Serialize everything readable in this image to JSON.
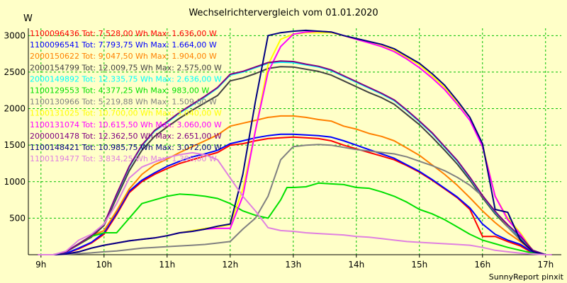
{
  "chart_data": {
    "type": "line",
    "title": "Wechselrichtervergleich vom 01.01.2020",
    "ylabel": "W",
    "xlabel": "",
    "footer": "SunnyReport pinxit",
    "xlim": [
      8.8,
      17.25
    ],
    "ylim": [
      0,
      3100
    ],
    "yticks": [
      500,
      1000,
      1500,
      2000,
      2500,
      3000
    ],
    "xticks": [
      {
        "value": 9,
        "label": "9h"
      },
      {
        "value": 10,
        "label": "10h"
      },
      {
        "value": 11,
        "label": "11h"
      },
      {
        "value": 12,
        "label": "12h"
      },
      {
        "value": 13,
        "label": "13h"
      },
      {
        "value": 14,
        "label": "14h"
      },
      {
        "value": 15,
        "label": "15h"
      },
      {
        "value": 16,
        "label": "16h"
      },
      {
        "value": 17,
        "label": "17h"
      }
    ],
    "grid": true,
    "legend_position": "top-left",
    "series": [
      {
        "name": "1100096436",
        "label": "1100096436 Tot: 7.528,00 Wh Max: 1.636,00 W",
        "color": "#ff0000",
        "x": [
          8.95,
          9.2,
          9.4,
          9.6,
          9.8,
          10.0,
          10.2,
          10.4,
          10.6,
          10.8,
          11.0,
          11.2,
          11.4,
          11.6,
          11.8,
          12.0,
          12.2,
          12.4,
          12.6,
          12.8,
          13.0,
          13.2,
          13.4,
          13.6,
          13.8,
          14.0,
          14.2,
          14.4,
          14.6,
          14.8,
          15.0,
          15.2,
          15.4,
          15.6,
          15.8,
          16.0,
          16.2,
          16.4,
          16.6,
          16.8,
          17.0,
          17.1
        ],
        "y": [
          0,
          0,
          20,
          80,
          160,
          280,
          550,
          850,
          1000,
          1100,
          1180,
          1250,
          1300,
          1350,
          1400,
          1500,
          1520,
          1560,
          1590,
          1600,
          1610,
          1600,
          1590,
          1560,
          1500,
          1450,
          1400,
          1350,
          1300,
          1220,
          1130,
          1020,
          900,
          780,
          620,
          250,
          250,
          180,
          120,
          20,
          0,
          0
        ]
      },
      {
        "name": "1100096541",
        "label": "1100096541 Tot: 7.793,75 Wh Max: 1.664,00 W",
        "color": "#0000ff",
        "x": [
          8.95,
          9.2,
          9.4,
          9.6,
          9.8,
          10.0,
          10.2,
          10.4,
          10.6,
          10.8,
          11.0,
          11.2,
          11.4,
          11.6,
          11.8,
          12.0,
          12.2,
          12.4,
          12.6,
          12.8,
          13.0,
          13.2,
          13.4,
          13.6,
          13.8,
          14.0,
          14.2,
          14.4,
          14.6,
          14.8,
          15.0,
          15.2,
          15.4,
          15.6,
          15.8,
          16.0,
          16.2,
          16.4,
          16.6,
          16.8,
          17.0,
          17.1
        ],
        "y": [
          0,
          0,
          20,
          90,
          170,
          300,
          570,
          870,
          1020,
          1120,
          1210,
          1280,
          1340,
          1380,
          1430,
          1520,
          1560,
          1600,
          1630,
          1650,
          1650,
          1640,
          1630,
          1610,
          1560,
          1500,
          1440,
          1380,
          1320,
          1230,
          1140,
          1030,
          910,
          790,
          640,
          420,
          280,
          200,
          140,
          30,
          0,
          0
        ]
      },
      {
        "name": "2000150622",
        "label": "2000150622 Tot: 9.047,50 Wh Max: 1.904,00 W",
        "color": "#ff8000",
        "x": [
          8.95,
          9.2,
          9.4,
          9.6,
          9.8,
          10.0,
          10.2,
          10.4,
          10.6,
          10.8,
          11.0,
          11.2,
          11.4,
          11.6,
          11.8,
          12.0,
          12.2,
          12.4,
          12.6,
          12.8,
          13.0,
          13.2,
          13.4,
          13.6,
          13.8,
          14.0,
          14.2,
          14.4,
          14.6,
          14.8,
          15.0,
          15.2,
          15.4,
          15.6,
          15.8,
          16.0,
          16.2,
          16.4,
          16.6,
          16.8,
          17.0,
          17.1
        ],
        "y": [
          0,
          0,
          40,
          150,
          260,
          330,
          600,
          900,
          1100,
          1230,
          1310,
          1400,
          1480,
          1560,
          1640,
          1760,
          1800,
          1840,
          1880,
          1900,
          1900,
          1880,
          1850,
          1830,
          1760,
          1720,
          1660,
          1620,
          1560,
          1460,
          1360,
          1230,
          1100,
          950,
          780,
          600,
          440,
          300,
          180,
          40,
          0,
          0
        ]
      },
      {
        "name": "2000154799",
        "label": "2000154799 Tot: 12.009,75 Wh Max: 2.575,00 W",
        "color": "#404040",
        "x": [
          8.95,
          9.2,
          9.4,
          9.6,
          9.8,
          10.0,
          10.2,
          10.4,
          10.6,
          10.8,
          11.0,
          11.2,
          11.4,
          11.6,
          11.8,
          12.0,
          12.2,
          12.4,
          12.6,
          12.8,
          13.0,
          13.2,
          13.4,
          13.6,
          13.8,
          14.0,
          14.2,
          14.4,
          14.6,
          14.8,
          15.0,
          15.2,
          15.4,
          15.6,
          15.8,
          16.0,
          16.2,
          16.4,
          16.6,
          16.8,
          17.0,
          17.1
        ],
        "y": [
          0,
          0,
          40,
          140,
          240,
          400,
          780,
          1150,
          1430,
          1620,
          1750,
          1870,
          1980,
          2080,
          2180,
          2380,
          2420,
          2480,
          2550,
          2575,
          2570,
          2540,
          2510,
          2460,
          2380,
          2300,
          2220,
          2150,
          2060,
          1920,
          1780,
          1610,
          1430,
          1240,
          1020,
          780,
          560,
          380,
          220,
          50,
          0,
          0
        ]
      },
      {
        "name": "2000149892",
        "label": "2000149892 Tot: 12.335,75 Wh Max: 2.636,00 W",
        "color": "#00ffff",
        "x": [
          8.95,
          9.2,
          9.4,
          9.6,
          9.8,
          10.0,
          10.2,
          10.4,
          10.6,
          10.8,
          11.0,
          11.2,
          11.4,
          11.6,
          11.8,
          12.0,
          12.2,
          12.4,
          12.6,
          12.8,
          13.0,
          13.2,
          13.4,
          13.6,
          13.8,
          14.0,
          14.2,
          14.4,
          14.6,
          14.8,
          15.0,
          15.2,
          15.4,
          15.6,
          15.8,
          16.0,
          16.2,
          16.4,
          16.6,
          16.8,
          17.0,
          17.1
        ],
        "y": [
          0,
          0,
          40,
          150,
          260,
          420,
          820,
          1200,
          1490,
          1690,
          1810,
          1940,
          2050,
          2160,
          2280,
          2460,
          2500,
          2560,
          2620,
          2636,
          2630,
          2600,
          2570,
          2520,
          2440,
          2360,
          2280,
          2200,
          2110,
          1970,
          1820,
          1660,
          1470,
          1280,
          1050,
          800,
          580,
          400,
          240,
          60,
          0,
          0
        ]
      },
      {
        "name": "1100129553",
        "label": "1100129553 Tot: 4.377,25 Wh Max: 983,00 W",
        "color": "#00e000",
        "x": [
          8.95,
          9.2,
          9.4,
          9.6,
          9.8,
          10.0,
          10.2,
          10.4,
          10.6,
          10.8,
          11.0,
          11.2,
          11.4,
          11.6,
          11.8,
          12.0,
          12.2,
          12.4,
          12.6,
          12.8,
          12.9,
          13.0,
          13.2,
          13.4,
          13.6,
          13.8,
          14.0,
          14.2,
          14.4,
          14.6,
          14.8,
          15.0,
          15.2,
          15.4,
          15.6,
          15.8,
          16.0,
          16.2,
          16.4,
          16.6,
          16.8,
          17.0,
          17.1
        ],
        "y": [
          0,
          0,
          40,
          150,
          250,
          300,
          300,
          500,
          700,
          750,
          800,
          830,
          820,
          800,
          770,
          700,
          600,
          540,
          500,
          750,
          920,
          920,
          930,
          980,
          970,
          960,
          920,
          910,
          860,
          800,
          720,
          620,
          560,
          480,
          380,
          280,
          200,
          150,
          100,
          60,
          20,
          0,
          0
        ]
      },
      {
        "name": "1100130966",
        "label": "1100130966 Tot: 5.219,88 Wh Max: 1.509,00 W",
        "color": "#808080",
        "x": [
          8.95,
          9.2,
          9.4,
          9.6,
          9.8,
          10.0,
          10.2,
          10.4,
          10.6,
          10.8,
          11.0,
          11.2,
          11.4,
          11.6,
          11.8,
          12.0,
          12.2,
          12.4,
          12.6,
          12.8,
          13.0,
          13.2,
          13.4,
          13.6,
          13.8,
          14.0,
          14.2,
          14.4,
          14.6,
          14.8,
          15.0,
          15.2,
          15.4,
          15.6,
          15.8,
          16.0,
          16.2,
          16.4,
          16.6,
          16.8,
          17.0,
          17.1
        ],
        "y": [
          0,
          0,
          5,
          15,
          25,
          40,
          50,
          70,
          90,
          100,
          110,
          120,
          130,
          140,
          160,
          180,
          350,
          500,
          800,
          1300,
          1480,
          1500,
          1509,
          1500,
          1470,
          1440,
          1420,
          1400,
          1380,
          1340,
          1280,
          1220,
          1150,
          1060,
          950,
          800,
          600,
          380,
          200,
          50,
          0,
          0
        ]
      },
      {
        "name": "1100131025",
        "label": "1100131025 Tot: 10.700,00 Wh Max: 3.040,00 W",
        "color": "#ffff00",
        "x": [
          8.95,
          9.2,
          9.4,
          9.6,
          9.8,
          10.0,
          10.2,
          10.4,
          10.6,
          10.8,
          11.0,
          11.2,
          11.4,
          11.6,
          11.8,
          12.0,
          12.2,
          12.4,
          12.6,
          12.8,
          13.0,
          13.2,
          13.4,
          13.6,
          13.8,
          14.0,
          14.2,
          14.4,
          14.6,
          14.8,
          15.0,
          15.2,
          15.4,
          15.6,
          15.8,
          16.0,
          16.2,
          16.4,
          16.6,
          16.8,
          17.0,
          17.1
        ],
        "y": [
          0,
          0,
          10,
          40,
          90,
          130,
          160,
          190,
          210,
          230,
          260,
          300,
          330,
          360,
          380,
          410,
          900,
          1700,
          2600,
          2950,
          3020,
          3040,
          3040,
          3040,
          3000,
          2950,
          2900,
          2860,
          2800,
          2700,
          2600,
          2450,
          2290,
          2090,
          1880,
          1500,
          800,
          500,
          300,
          50,
          0,
          0
        ]
      },
      {
        "name": "1100131074",
        "label": "1100131074 Tot: 10.615,50 Wh Max: 3.060,00 W",
        "color": "#ff00ff",
        "x": [
          8.95,
          9.2,
          9.4,
          9.6,
          9.8,
          10.0,
          10.2,
          10.4,
          10.6,
          10.8,
          11.0,
          11.2,
          11.4,
          11.6,
          11.8,
          12.0,
          12.2,
          12.4,
          12.6,
          12.8,
          13.0,
          13.2,
          13.4,
          13.6,
          13.8,
          14.0,
          14.2,
          14.4,
          14.6,
          14.8,
          15.0,
          15.2,
          15.4,
          15.6,
          15.8,
          16.0,
          16.2,
          16.4,
          16.6,
          16.8,
          17.0,
          17.1
        ],
        "y": [
          0,
          0,
          10,
          40,
          90,
          130,
          160,
          190,
          210,
          230,
          260,
          300,
          320,
          350,
          360,
          360,
          800,
          1700,
          2500,
          2850,
          3020,
          3050,
          3060,
          3050,
          3000,
          2950,
          2900,
          2850,
          2780,
          2680,
          2560,
          2420,
          2260,
          2060,
          1840,
          1480,
          800,
          480,
          280,
          40,
          0,
          0
        ]
      },
      {
        "name": "2000001478",
        "label": "2000001478 Tot: 12.362,50 Wh Max: 2.651,00 W",
        "color": "#800080",
        "x": [
          8.95,
          9.2,
          9.4,
          9.6,
          9.8,
          10.0,
          10.2,
          10.4,
          10.6,
          10.8,
          11.0,
          11.2,
          11.4,
          11.6,
          11.8,
          12.0,
          12.2,
          12.4,
          12.6,
          12.8,
          13.0,
          13.2,
          13.4,
          13.6,
          13.8,
          14.0,
          14.2,
          14.4,
          14.6,
          14.8,
          15.0,
          15.2,
          15.4,
          15.6,
          15.8,
          16.0,
          16.2,
          16.4,
          16.6,
          16.8,
          17.0,
          17.1
        ],
        "y": [
          0,
          0,
          40,
          150,
          260,
          420,
          830,
          1210,
          1500,
          1700,
          1820,
          1950,
          2060,
          2170,
          2290,
          2470,
          2510,
          2570,
          2630,
          2651,
          2645,
          2610,
          2580,
          2530,
          2450,
          2370,
          2290,
          2210,
          2120,
          1980,
          1830,
          1670,
          1480,
          1290,
          1060,
          810,
          590,
          410,
          250,
          60,
          0,
          0
        ]
      },
      {
        "name": "1100148421",
        "label": "1100148421 Tot: 10.985,75 Wh Max: 3.072,00 W",
        "color": "#000080",
        "x": [
          8.95,
          9.2,
          9.4,
          9.6,
          9.8,
          10.0,
          10.2,
          10.4,
          10.6,
          10.8,
          11.0,
          11.2,
          11.4,
          11.6,
          11.8,
          12.0,
          12.2,
          12.4,
          12.6,
          12.8,
          13.0,
          13.2,
          13.4,
          13.6,
          13.8,
          14.0,
          14.2,
          14.4,
          14.6,
          14.8,
          15.0,
          15.2,
          15.4,
          15.6,
          15.8,
          16.0,
          16.2,
          16.4,
          16.6,
          16.8,
          17.0,
          17.1
        ],
        "y": [
          0,
          0,
          10,
          40,
          90,
          130,
          160,
          190,
          210,
          230,
          260,
          300,
          320,
          350,
          390,
          420,
          1100,
          2100,
          3000,
          3040,
          3060,
          3072,
          3060,
          3050,
          3000,
          2960,
          2920,
          2880,
          2820,
          2720,
          2620,
          2480,
          2320,
          2110,
          1880,
          1520,
          620,
          580,
          200,
          40,
          0,
          0
        ]
      },
      {
        "name": "1100119477",
        "label": "1100119477 Tot: 3.834,25 Wh Max: 1.396,00 W",
        "color": "#e080e0",
        "x": [
          8.95,
          9.2,
          9.4,
          9.6,
          9.8,
          10.0,
          10.2,
          10.4,
          10.6,
          10.8,
          11.0,
          11.2,
          11.4,
          11.6,
          11.8,
          12.0,
          12.2,
          12.4,
          12.6,
          12.8,
          13.0,
          13.2,
          13.4,
          13.6,
          13.8,
          14.0,
          14.2,
          14.4,
          14.6,
          14.8,
          15.0,
          15.2,
          15.4,
          15.6,
          15.8,
          16.0,
          16.2,
          16.4,
          16.6,
          16.8,
          17.0,
          17.1
        ],
        "y": [
          0,
          0,
          50,
          200,
          280,
          420,
          700,
          1050,
          1200,
          1270,
          1330,
          1370,
          1396,
          1370,
          1300,
          1050,
          800,
          600,
          370,
          330,
          320,
          300,
          290,
          280,
          270,
          250,
          240,
          220,
          200,
          180,
          170,
          160,
          150,
          140,
          130,
          100,
          60,
          40,
          20,
          10,
          0,
          0
        ]
      }
    ]
  }
}
